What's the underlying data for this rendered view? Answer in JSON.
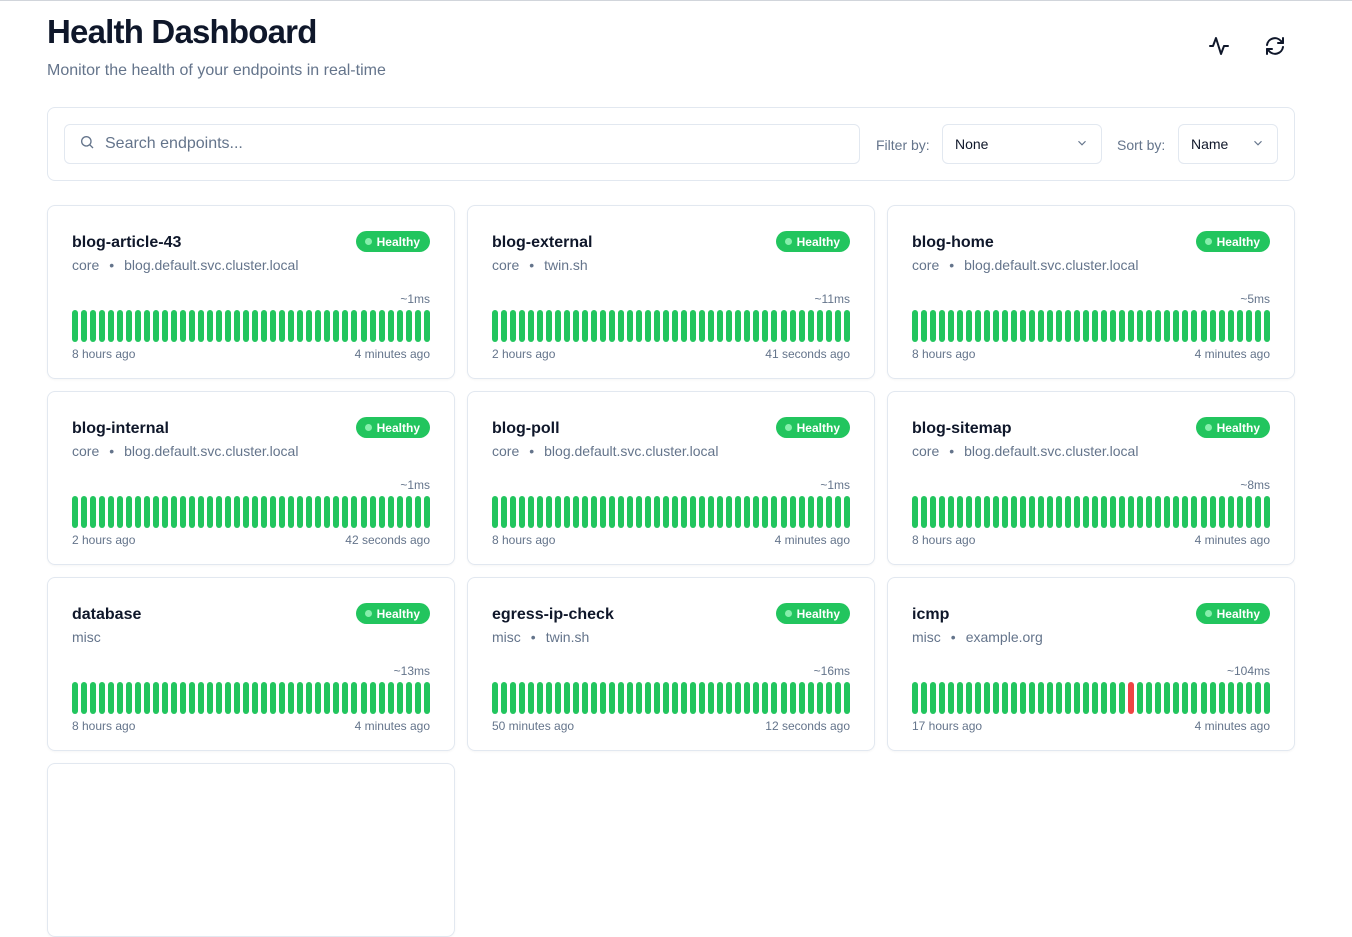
{
  "header": {
    "title": "Health Dashboard",
    "subtitle": "Monitor the health of your endpoints in real-time",
    "icons": [
      "activity-icon",
      "refresh-icon"
    ]
  },
  "toolbar": {
    "search_placeholder": "Search endpoints...",
    "filter_label": "Filter by:",
    "filter_value": "None",
    "sort_label": "Sort by:",
    "sort_value": "Name"
  },
  "colors": {
    "healthy": "#22c55e",
    "unhealthy": "#ef4444"
  },
  "endpoints": [
    {
      "name": "blog-article-43",
      "group": "core",
      "host": "blog.default.svc.cluster.local",
      "status": "Healthy",
      "response": "~1ms",
      "oldest": "8 hours ago",
      "newest": "4 minutes ago",
      "failed_checks": []
    },
    {
      "name": "blog-external",
      "group": "core",
      "host": "twin.sh",
      "status": "Healthy",
      "response": "~11ms",
      "oldest": "2 hours ago",
      "newest": "41 seconds ago",
      "failed_checks": []
    },
    {
      "name": "blog-home",
      "group": "core",
      "host": "blog.default.svc.cluster.local",
      "status": "Healthy",
      "response": "~5ms",
      "oldest": "8 hours ago",
      "newest": "4 minutes ago",
      "failed_checks": []
    },
    {
      "name": "blog-internal",
      "group": "core",
      "host": "blog.default.svc.cluster.local",
      "status": "Healthy",
      "response": "~1ms",
      "oldest": "2 hours ago",
      "newest": "42 seconds ago",
      "failed_checks": []
    },
    {
      "name": "blog-poll",
      "group": "core",
      "host": "blog.default.svc.cluster.local",
      "status": "Healthy",
      "response": "~1ms",
      "oldest": "8 hours ago",
      "newest": "4 minutes ago",
      "failed_checks": []
    },
    {
      "name": "blog-sitemap",
      "group": "core",
      "host": "blog.default.svc.cluster.local",
      "status": "Healthy",
      "response": "~8ms",
      "oldest": "8 hours ago",
      "newest": "4 minutes ago",
      "failed_checks": []
    },
    {
      "name": "database",
      "group": "misc",
      "host": "",
      "status": "Healthy",
      "response": "~13ms",
      "oldest": "8 hours ago",
      "newest": "4 minutes ago",
      "failed_checks": []
    },
    {
      "name": "egress-ip-check",
      "group": "misc",
      "host": "twin.sh",
      "status": "Healthy",
      "response": "~16ms",
      "oldest": "50 minutes ago",
      "newest": "12 seconds ago",
      "failed_checks": []
    },
    {
      "name": "icmp",
      "group": "misc",
      "host": "example.org",
      "status": "Healthy",
      "response": "~104ms",
      "oldest": "17 hours ago",
      "newest": "4 minutes ago",
      "failed_checks": [
        24
      ]
    }
  ]
}
